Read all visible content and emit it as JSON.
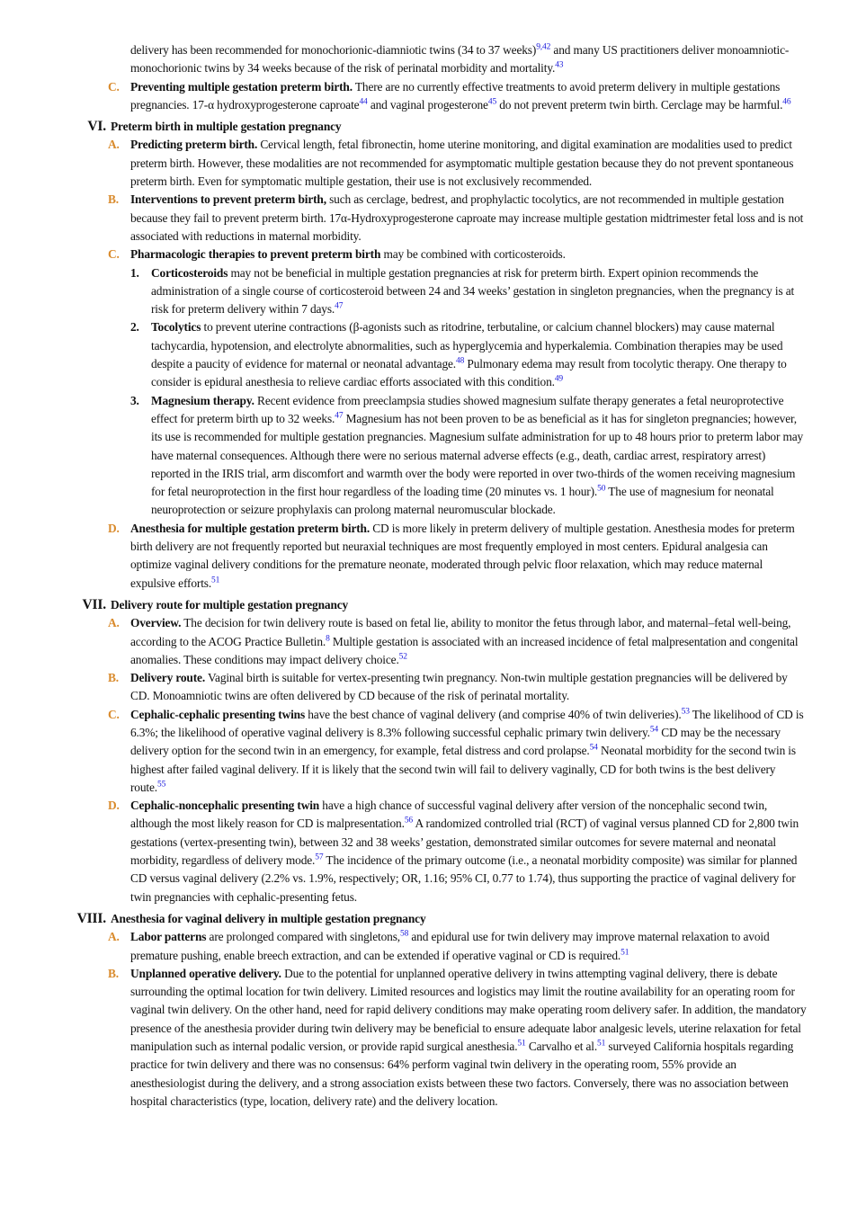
{
  "continued": {
    "runs": [
      {
        "text": "delivery has been recommended for monochorionic-diamniotic twins (34 to 37 weeks)"
      },
      {
        "ref": "9,42"
      },
      {
        "text": " and many US practitioners deliver monoamniotic-monochorionic twins by 34 weeks because of the risk of perinatal morbidity and mortality."
      },
      {
        "ref": "43"
      }
    ]
  },
  "items": [
    {
      "marker": "C.",
      "lead": "Preventing multiple gestation preterm birth.",
      "runs": [
        {
          "text": " There are no currently effective treatments to avoid preterm delivery in multiple gestations pregnancies. 17-α hydroxyprogesterone caproate"
        },
        {
          "ref": "44"
        },
        {
          "text": " and vaginal progesterone"
        },
        {
          "ref": "45"
        },
        {
          "text": " do not prevent preterm twin birth. Cerclage may be harmful."
        },
        {
          "ref": "46"
        }
      ]
    }
  ],
  "sections": [
    {
      "number": "VI.",
      "title": "Preterm birth in multiple gestation pregnancy",
      "items": [
        {
          "marker": "A.",
          "lead": "Predicting preterm birth.",
          "runs": [
            {
              "text": " Cervical length, fetal fibronectin, home uterine monitoring, and digital examination are modalities used to predict preterm birth. However, these modalities are not recommended for asymptomatic multiple gestation because they do not prevent spontaneous preterm birth. Even for symptomatic multiple gestation, their use is not exclusively recommended."
            }
          ]
        },
        {
          "marker": "B.",
          "lead": "Interventions to prevent preterm birth,",
          "runs": [
            {
              "text": " such as cerclage, bedrest, and prophylactic tocolytics, are not recommended in multiple gestation because they fail to prevent preterm birth. 17α-Hydroxyprogesterone caproate may increase multiple gestation midtrimester fetal loss and is not associated with reductions in maternal morbidity."
            }
          ]
        },
        {
          "marker": "C.",
          "lead": "Pharmacologic therapies to prevent preterm birth",
          "runs": [
            {
              "text": " may be combined with corticosteroids."
            }
          ],
          "subitems": [
            {
              "marker": "1.",
              "lead": "Corticosteroids",
              "runs": [
                {
                  "text": " may not be beneficial in multiple gestation pregnancies at risk for preterm birth. Expert opinion recommends the administration of a single course of corticosteroid between 24 and 34 weeks’ gestation in singleton pregnancies, when the pregnancy is at risk for preterm delivery within 7 days."
                },
                {
                  "ref": "47"
                }
              ]
            },
            {
              "marker": "2.",
              "lead": "Tocolytics",
              "runs": [
                {
                  "text": " to prevent uterine contractions (β-agonists such as ritodrine, terbutaline, or calcium channel blockers) may cause maternal tachycardia, hypotension, and electrolyte abnormalities, such as hyperglycemia and hyperkalemia. Combination therapies may be used despite a paucity of evidence for maternal or neonatal advantage."
                },
                {
                  "ref": "48"
                },
                {
                  "text": " Pulmonary edema may result from tocolytic therapy. One therapy to consider is epidural anesthesia to relieve cardiac efforts associated with this condition."
                },
                {
                  "ref": "49"
                }
              ]
            },
            {
              "marker": "3.",
              "lead": "Magnesium therapy.",
              "runs": [
                {
                  "text": " Recent evidence from preeclampsia studies showed magnesium sulfate therapy generates a fetal neuroprotective effect for preterm birth up to 32 weeks."
                },
                {
                  "ref": "47"
                },
                {
                  "text": " Magnesium has not been proven to be as beneficial as it has for singleton pregnancies; however, its use is recommended for multiple gestation pregnancies. Magnesium sulfate administration for up to 48 hours prior to preterm labor may have maternal consequences. Although there were no serious maternal adverse effects (e.g., death, cardiac arrest, respiratory arrest) reported in the IRIS trial, arm discomfort and warmth over the body were reported in over two-thirds of the women receiving magnesium for fetal neuroprotection in the first hour regardless of the loading time (20 minutes vs. 1 hour)."
                },
                {
                  "ref": "50"
                },
                {
                  "text": " The use of magnesium for neonatal neuroprotection or seizure prophylaxis can prolong maternal neuromuscular blockade."
                }
              ]
            }
          ]
        },
        {
          "marker": "D.",
          "lead": "Anesthesia for multiple gestation preterm birth.",
          "runs": [
            {
              "text": " CD is more likely in preterm delivery of multiple gestation. Anesthesia modes for preterm birth delivery are not frequently reported but neuraxial techniques are most frequently employed in most centers. Epidural analgesia can optimize vaginal delivery conditions for the premature neonate, moderated through pelvic floor relaxation, which may reduce maternal expulsive efforts."
            },
            {
              "ref": "51"
            }
          ]
        }
      ]
    },
    {
      "number": "VII.",
      "title": "Delivery route for multiple gestation pregnancy",
      "items": [
        {
          "marker": "A.",
          "lead": "Overview.",
          "runs": [
            {
              "text": " The decision for twin delivery route is based on fetal lie, ability to monitor the fetus through labor, and maternal–fetal well-being, according to the ACOG Practice Bulletin."
            },
            {
              "ref": "8"
            },
            {
              "text": " Multiple gestation is associated with an increased incidence of fetal malpresentation and congenital anomalies. These conditions may impact delivery choice."
            },
            {
              "ref": "52"
            }
          ]
        },
        {
          "marker": "B.",
          "lead": "Delivery route.",
          "runs": [
            {
              "text": " Vaginal birth is suitable for vertex-presenting twin pregnancy. Non-twin multiple gestation pregnancies will be delivered by CD. Monoamniotic twins are often delivered by CD because of the risk of perinatal mortality."
            }
          ]
        },
        {
          "marker": "C.",
          "lead": "Cephalic-cephalic presenting twins",
          "runs": [
            {
              "text": " have the best chance of vaginal delivery (and comprise 40% of twin deliveries)."
            },
            {
              "ref": "53"
            },
            {
              "text": " The likelihood of CD is 6.3%; the likelihood of operative vaginal delivery is 8.3% following successful cephalic primary twin delivery."
            },
            {
              "ref": "54"
            },
            {
              "text": " CD may be the necessary delivery option for the second twin in an emergency, for example, fetal distress and cord prolapse."
            },
            {
              "ref": "54"
            },
            {
              "text": " Neonatal morbidity for the second twin is highest after failed vaginal delivery. If it is likely that the second twin will fail to delivery vaginally, CD for both twins is the best delivery route."
            },
            {
              "ref": "55"
            }
          ]
        },
        {
          "marker": "D.",
          "lead": "Cephalic-noncephalic presenting twin",
          "runs": [
            {
              "text": " have a high chance of successful vaginal delivery after version of the noncephalic second twin, although the most likely reason for CD is malpresentation."
            },
            {
              "ref": "56"
            },
            {
              "text": " A randomized controlled trial (RCT) of vaginal versus planned CD for 2,800 twin gestations (vertex-presenting twin), between 32 and 38 weeks’ gestation, demonstrated similar outcomes for severe maternal and neonatal morbidity, regardless of delivery mode."
            },
            {
              "ref": "57"
            },
            {
              "text": " The incidence of the primary outcome (i.e., a neonatal morbidity composite) was similar for planned CD versus vaginal delivery (2.2% vs. 1.9%, respectively; OR, 1.16; 95% CI, 0.77 to 1.74), thus supporting the practice of vaginal delivery for twin pregnancies with cephalic-presenting fetus."
            }
          ]
        }
      ]
    },
    {
      "number": "VIII.",
      "title": "Anesthesia for vaginal delivery in multiple gestation pregnancy",
      "items": [
        {
          "marker": "A.",
          "lead": "Labor patterns",
          "runs": [
            {
              "text": " are prolonged compared with singletons,"
            },
            {
              "ref": "58"
            },
            {
              "text": " and epidural use for twin delivery may improve maternal relaxation to avoid premature pushing, enable breech extraction, and can be extended if operative vaginal or CD is required."
            },
            {
              "ref": "51"
            }
          ]
        },
        {
          "marker": "B.",
          "lead": "Unplanned operative delivery.",
          "runs": [
            {
              "text": " Due to the potential for unplanned operative delivery in twins attempting vaginal delivery, there is debate surrounding the optimal location for twin delivery. Limited resources and logistics may limit the routine availability for an operating room for vaginal twin delivery. On the other hand, need for rapid delivery conditions may make operating room delivery safer. In addition, the mandatory presence of the anesthesia provider during twin delivery may be beneficial to ensure adequate labor analgesic levels, uterine relaxation for fetal manipulation such as internal podalic version, or provide rapid surgical anesthesia."
            },
            {
              "ref": "51"
            },
            {
              "text": " Carvalho et al."
            },
            {
              "ref": "51"
            },
            {
              "text": " surveyed California hospitals regarding practice for twin delivery and there was no consensus: 64% perform vaginal twin delivery in the operating room, 55% provide an anesthesiologist during the delivery, and a strong association exists between these two factors. Conversely, there was no association between hospital characteristics (type, location, delivery rate) and the delivery location."
            }
          ]
        }
      ]
    }
  ]
}
